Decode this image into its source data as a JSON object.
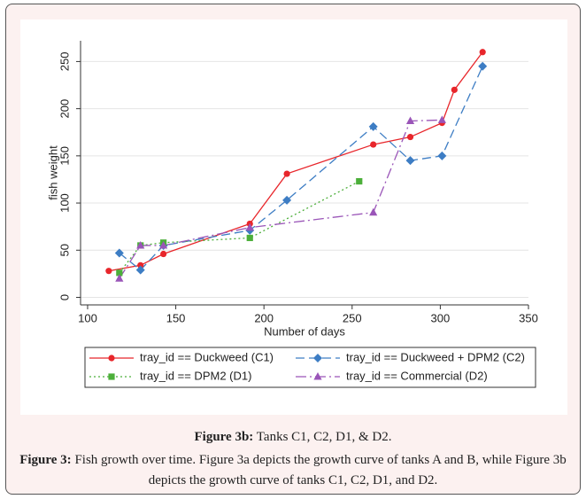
{
  "chart_data": {
    "type": "line",
    "x_label": "Number of days",
    "y_label": "fish weight",
    "xlim": [
      96,
      350
    ],
    "ylim": [
      -8,
      272
    ],
    "xticks": [
      100,
      150,
      200,
      250,
      300,
      350
    ],
    "yticks": [
      0,
      50,
      100,
      150,
      200,
      250
    ],
    "grid": true,
    "series": [
      {
        "name": "tray_id == Duckweed (C1)",
        "color": "#e8262b",
        "marker": "circle",
        "line_style": "solid",
        "x": [
          112,
          130,
          143,
          192,
          213,
          262,
          283,
          301,
          308,
          324
        ],
        "values": [
          28,
          34,
          46,
          78,
          131,
          162,
          170,
          185,
          220,
          260
        ]
      },
      {
        "name": "tray_id == Duckweed + DPM2 (C2)",
        "color": "#3d7dc4",
        "marker": "diamond",
        "line_style": "dashed",
        "x": [
          118,
          130,
          143,
          192,
          213,
          262,
          283,
          301,
          324
        ],
        "values": [
          47,
          29,
          55,
          71,
          103,
          181,
          145,
          150,
          245
        ]
      },
      {
        "name": "tray_id == DPM2 (D1)",
        "color": "#4caf3a",
        "marker": "square",
        "line_style": "dotted",
        "x": [
          118,
          130,
          143,
          192,
          254
        ],
        "values": [
          26,
          55,
          58,
          63,
          123
        ]
      },
      {
        "name": "tray_id == Commercial (D2)",
        "color": "#9a55b8",
        "marker": "triangle",
        "line_style": "dashdot",
        "x": [
          118,
          130,
          143,
          192,
          262,
          283,
          301
        ],
        "values": [
          20,
          55,
          55,
          74,
          90,
          187,
          188
        ]
      }
    ]
  },
  "caption": {
    "sub_label": "Figure 3b:",
    "sub_text": "Tanks C1, C2, D1, & D2.",
    "label": "Figure 3:",
    "text": "Fish growth over time. Figure 3a depicts the growth curve of tanks A and B, while Figure 3b depicts the growth curve of tanks C1, C2, D1, and D2."
  }
}
